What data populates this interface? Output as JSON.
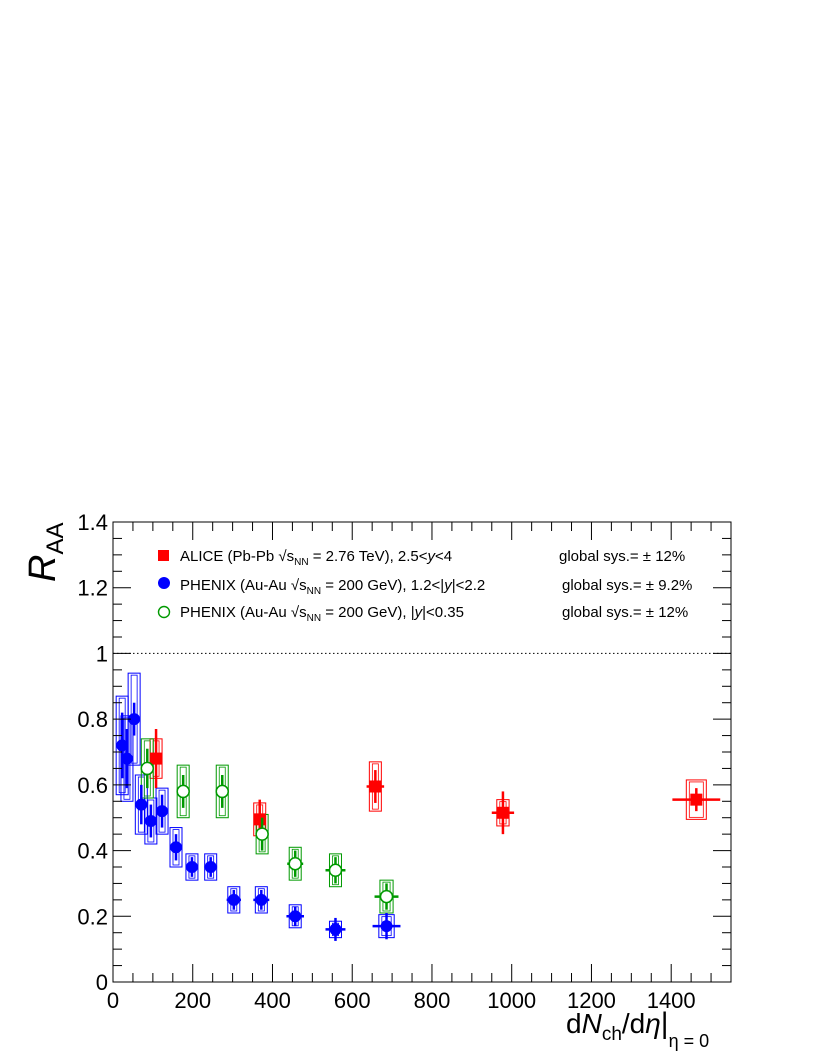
{
  "chart_data": {
    "type": "scatter",
    "xlim": [
      0,
      1550
    ],
    "ylim": [
      0,
      1.4
    ],
    "x_ticks": [
      0,
      200,
      400,
      600,
      800,
      1000,
      1200,
      1400
    ],
    "y_ticks": [
      0,
      0.2,
      0.4,
      0.6,
      0.8,
      1,
      1.2,
      1.4
    ],
    "x_tick_labels": [
      "0",
      "200",
      "400",
      "600",
      "800",
      "1000",
      "1200",
      "1400"
    ],
    "y_tick_labels": [
      "0",
      "0.2",
      "0.4",
      "0.6",
      "0.8",
      "1",
      "1.2",
      "1.4"
    ],
    "xlabel": "dN_ch/dη|_η = 0",
    "ylabel": "R_AA",
    "reference_line": 1,
    "legend_position": "top",
    "series": [
      {
        "name": "ALICE (Pb-Pb √s_NN = 2.76 TeV), 2.5<y<4",
        "global_sys": "global sys.= ± 12%",
        "color": "#ff0000",
        "marker": "filled-square",
        "points": [
          {
            "x": 108,
            "y": 0.68,
            "xerr": 8,
            "stat": 0.09,
            "sys": 0.06
          },
          {
            "x": 368,
            "y": 0.495,
            "xerr": 12,
            "stat": 0.06,
            "sys": 0.05
          },
          {
            "x": 658,
            "y": 0.595,
            "xerr": 22,
            "stat": 0.05,
            "sys": 0.075
          },
          {
            "x": 978,
            "y": 0.515,
            "xerr": 28,
            "stat": 0.065,
            "sys": 0.04
          },
          {
            "x": 1463,
            "y": 0.555,
            "xerr": 60,
            "stat": 0.035,
            "sys": 0.06
          }
        ]
      },
      {
        "name": "PHENIX (Au-Au √s_NN = 200 GeV), 1.2<|y|<2.2",
        "global_sys": "global sys.= ± 9.2%",
        "color": "#0000ff",
        "marker": "filled-circle",
        "points": [
          {
            "x": 23,
            "y": 0.72,
            "xerr": 5,
            "stat": 0.1,
            "sys": 0.15
          },
          {
            "x": 35,
            "y": 0.68,
            "xerr": 5,
            "stat": 0.09,
            "sys": 0.13
          },
          {
            "x": 53,
            "y": 0.8,
            "xerr": 5,
            "stat": 0.05,
            "sys": 0.14
          },
          {
            "x": 71,
            "y": 0.54,
            "xerr": 8,
            "stat": 0.06,
            "sys": 0.09
          },
          {
            "x": 95,
            "y": 0.49,
            "xerr": 10,
            "stat": 0.05,
            "sys": 0.07
          },
          {
            "x": 123,
            "y": 0.52,
            "xerr": 12,
            "stat": 0.05,
            "sys": 0.07
          },
          {
            "x": 158,
            "y": 0.41,
            "xerr": 12,
            "stat": 0.04,
            "sys": 0.06
          },
          {
            "x": 198,
            "y": 0.35,
            "xerr": 14,
            "stat": 0.03,
            "sys": 0.04
          },
          {
            "x": 245,
            "y": 0.35,
            "xerr": 16,
            "stat": 0.03,
            "sys": 0.04
          },
          {
            "x": 303,
            "y": 0.25,
            "xerr": 18,
            "stat": 0.03,
            "sys": 0.04
          },
          {
            "x": 372,
            "y": 0.25,
            "xerr": 20,
            "stat": 0.03,
            "sys": 0.04
          },
          {
            "x": 457,
            "y": 0.2,
            "xerr": 22,
            "stat": 0.03,
            "sys": 0.035
          },
          {
            "x": 558,
            "y": 0.16,
            "xerr": 25,
            "stat": 0.035,
            "sys": 0.025
          },
          {
            "x": 686,
            "y": 0.17,
            "xerr": 35,
            "stat": 0.04,
            "sys": 0.035
          }
        ]
      },
      {
        "name": "PHENIX (Au-Au √s_NN = 200 GeV), |y|<0.35",
        "global_sys": "global sys.= ± 12%",
        "color": "#009900",
        "marker": "open-circle",
        "points": [
          {
            "x": 86,
            "y": 0.65,
            "xerr": 8,
            "stat": 0.06,
            "sys": 0.09
          },
          {
            "x": 176,
            "y": 0.58,
            "xerr": 12,
            "stat": 0.05,
            "sys": 0.08
          },
          {
            "x": 274,
            "y": 0.58,
            "xerr": 15,
            "stat": 0.05,
            "sys": 0.08
          },
          {
            "x": 374,
            "y": 0.45,
            "xerr": 15,
            "stat": 0.05,
            "sys": 0.06
          },
          {
            "x": 457,
            "y": 0.36,
            "xerr": 20,
            "stat": 0.04,
            "sys": 0.05
          },
          {
            "x": 558,
            "y": 0.34,
            "xerr": 25,
            "stat": 0.04,
            "sys": 0.05
          },
          {
            "x": 686,
            "y": 0.26,
            "xerr": 30,
            "stat": 0.04,
            "sys": 0.05
          }
        ]
      }
    ]
  },
  "labels": {
    "ylabel_main": "R",
    "ylabel_sub": "AA",
    "xlabel_d1": "d",
    "xlabel_N": "N",
    "xlabel_ch": "ch",
    "xlabel_rest": "/d",
    "xlabel_eta": "η",
    "xlabel_bar": "|",
    "xlabel_sub": "η = 0"
  },
  "legend": [
    {
      "prefix": "ALICE (Pb-Pb ",
      "root": "√",
      "s": "s",
      "nn": "NN",
      "energy": " = 2.76 TeV), 2.5<",
      "var": "y",
      "tail": "<4",
      "global": "global sys.= ± 12%"
    },
    {
      "prefix": "PHENIX (Au-Au ",
      "root": "√",
      "s": "s",
      "nn": "NN",
      "energy": " = 200 GeV), 1.2<|",
      "var": "y",
      "tail": "|<2.2",
      "global": "global sys.= ± 9.2%"
    },
    {
      "prefix": "PHENIX (Au-Au ",
      "root": "√",
      "s": "s",
      "nn": "NN",
      "energy": " = 200 GeV), |",
      "var": "y",
      "tail": "|<0.35",
      "global": "global sys.= ± 12%"
    }
  ]
}
